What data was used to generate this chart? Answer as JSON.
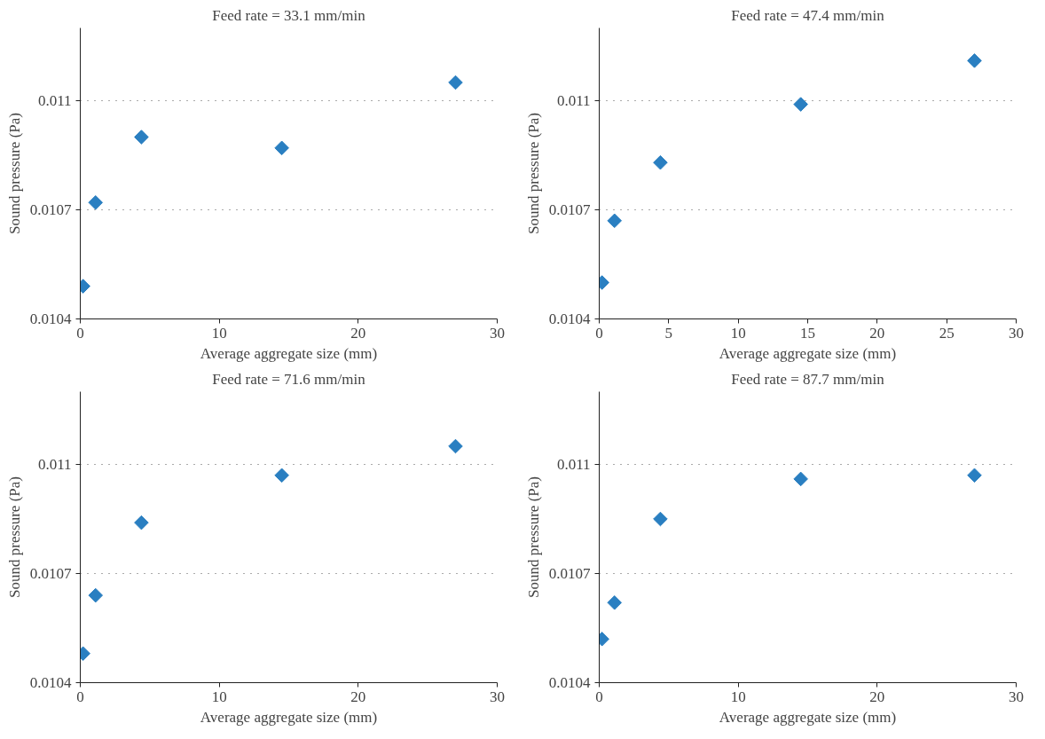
{
  "chart_data": [
    {
      "type": "scatter",
      "title": "Feed rate = 33.1 mm/min",
      "xlabel": "Average aggregate size (mm)",
      "ylabel": "Sound pressure (Pa)",
      "x": [
        0.2,
        1.1,
        4.4,
        14.5,
        27
      ],
      "series": [
        {
          "color": "#2a7fc1",
          "values": [
            0.01049,
            0.01072,
            0.0109,
            0.01087,
            0.01105
          ]
        }
      ],
      "xlim": [
        0,
        30
      ],
      "ylim": [
        0.0104,
        0.0112
      ],
      "xticks": [
        0,
        10,
        20,
        30
      ],
      "yticks": [
        0.0104,
        0.0107,
        0.011
      ],
      "grid": "y",
      "marker": "diamond"
    },
    {
      "type": "scatter",
      "title": "Feed rate = 47.4 mm/min",
      "xlabel": "Average aggregate size (mm)",
      "ylabel": "Sound pressure (Pa)",
      "x": [
        0.2,
        1.1,
        4.4,
        14.5,
        27
      ],
      "series": [
        {
          "color": "#2a7fc1",
          "values": [
            0.0105,
            0.01067,
            0.01083,
            0.01099,
            0.01111
          ]
        }
      ],
      "xlim": [
        0,
        30
      ],
      "ylim": [
        0.0104,
        0.0112
      ],
      "xticks": [
        0,
        5,
        10,
        15,
        20,
        25,
        30
      ],
      "yticks": [
        0.0104,
        0.0107,
        0.011
      ],
      "grid": "y",
      "marker": "diamond"
    },
    {
      "type": "scatter",
      "title": "Feed rate = 71.6 mm/min",
      "xlabel": "Average aggregate size (mm)",
      "ylabel": "Sound pressure (Pa)",
      "x": [
        0.2,
        1.1,
        4.4,
        14.5,
        27
      ],
      "series": [
        {
          "color": "#2a7fc1",
          "values": [
            0.01048,
            0.01064,
            0.01084,
            0.01097,
            0.01105
          ]
        }
      ],
      "xlim": [
        0,
        30
      ],
      "ylim": [
        0.0104,
        0.0112
      ],
      "xticks": [
        0,
        10,
        20,
        30
      ],
      "yticks": [
        0.0104,
        0.0107,
        0.011
      ],
      "grid": "y",
      "marker": "diamond"
    },
    {
      "type": "scatter",
      "title": "Feed rate = 87.7 mm/min",
      "xlabel": "Average aggregate size (mm)",
      "ylabel": "Sound pressure (Pa)",
      "x": [
        0.2,
        1.1,
        4.4,
        14.5,
        27
      ],
      "series": [
        {
          "color": "#2a7fc1",
          "values": [
            0.01052,
            0.01062,
            0.01085,
            0.01096,
            0.01097
          ]
        }
      ],
      "xlim": [
        0,
        30
      ],
      "ylim": [
        0.0104,
        0.0112
      ],
      "xticks": [
        0,
        10,
        20,
        30
      ],
      "yticks": [
        0.0104,
        0.0107,
        0.011
      ],
      "grid": "y",
      "marker": "diamond"
    }
  ]
}
